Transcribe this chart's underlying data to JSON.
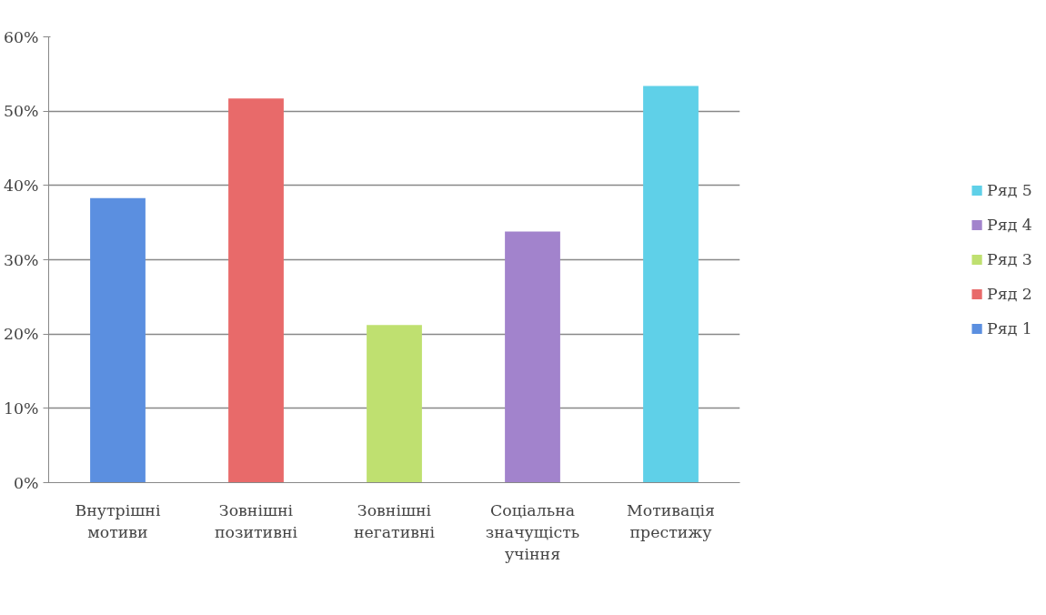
{
  "chart_data": {
    "type": "bar",
    "stacked": true,
    "categories": [
      "Внутрішні\nмотиви",
      "Зовнішні\nпозитивні",
      "Зовнішні\nнегативні",
      "Соціальна\nзначущість\nучіння",
      "Мотивація\nпрестижу"
    ],
    "series": [
      {
        "name": "Ряд 1",
        "color": "#5b8fe0",
        "values": [
          38.3,
          null,
          null,
          null,
          null
        ]
      },
      {
        "name": "Ряд 2",
        "color": "#e86a6a",
        "values": [
          null,
          51.7,
          null,
          null,
          null
        ]
      },
      {
        "name": "Ряд 3",
        "color": "#bfe070",
        "values": [
          null,
          null,
          21.2,
          null,
          null
        ]
      },
      {
        "name": "Ряд 4",
        "color": "#a283cc",
        "values": [
          null,
          null,
          null,
          33.8,
          null
        ]
      },
      {
        "name": "Ряд 5",
        "color": "#5fd0e8",
        "values": [
          null,
          null,
          null,
          null,
          53.4
        ]
      }
    ],
    "ylim": [
      0,
      60
    ],
    "yticks": [
      {
        "value": 0,
        "label": "0%"
      },
      {
        "value": 10,
        "label": "10%"
      },
      {
        "value": 20,
        "label": "20%"
      },
      {
        "value": 30,
        "label": "30%"
      },
      {
        "value": 40,
        "label": "40%"
      },
      {
        "value": 50,
        "label": "50%"
      },
      {
        "value": 60,
        "label": "60%"
      }
    ],
    "grid": "y",
    "legend": "right"
  }
}
